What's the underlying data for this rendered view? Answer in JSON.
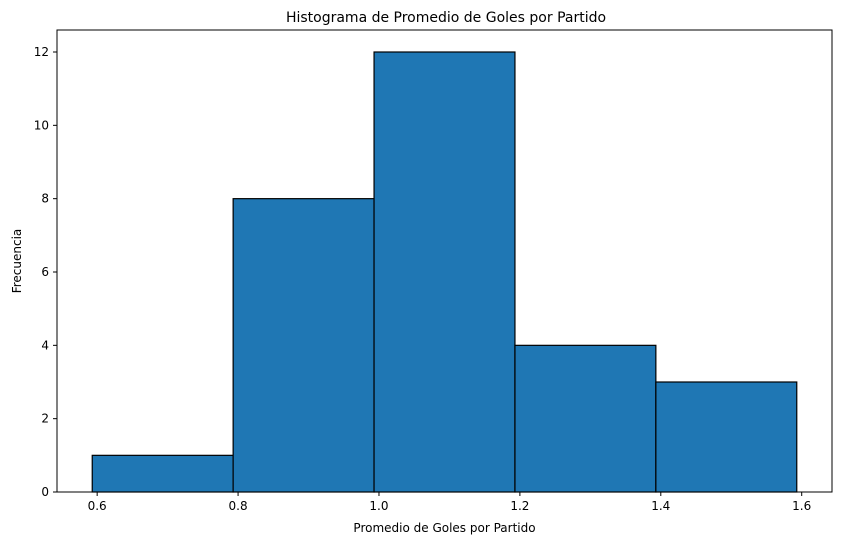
{
  "chart_data": {
    "type": "bar",
    "title": "Histograma de Promedio de Goles por Partido",
    "xlabel": "Promedio de Goles por Partido",
    "ylabel": "Frecuencia",
    "bin_edges": [
      0.593,
      0.793,
      0.993,
      1.193,
      1.393,
      1.593
    ],
    "values": [
      1,
      8,
      12,
      4,
      3
    ],
    "xlim": [
      0.543,
      1.643
    ],
    "ylim": [
      0,
      12.6
    ],
    "xticks": [
      0.6,
      0.8,
      1.0,
      1.2,
      1.4,
      1.6
    ],
    "xtick_labels": [
      "0.6",
      "0.8",
      "1.0",
      "1.2",
      "1.4",
      "1.6"
    ],
    "yticks": [
      0,
      2,
      4,
      6,
      8,
      10,
      12
    ],
    "ytick_labels": [
      "0",
      "2",
      "4",
      "6",
      "8",
      "10",
      "12"
    ],
    "bar_color": "#1f77b4",
    "edge_color": "#000000",
    "grid": false
  }
}
